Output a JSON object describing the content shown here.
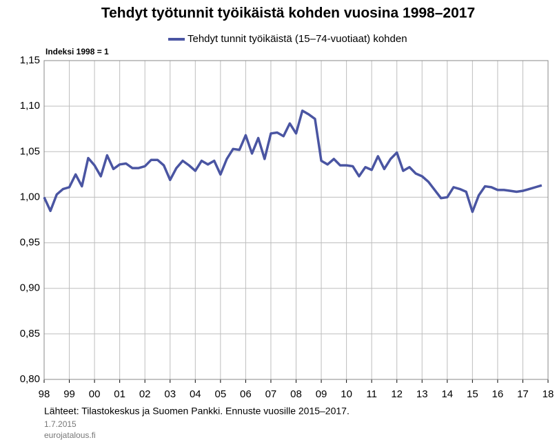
{
  "chart_data": {
    "type": "line",
    "title": "Tehdyt työtunnit työikäistä kohden vuosina 1998–2017",
    "y_axis_label": "Indeksi 1998 = 1",
    "source": "Lähteet: Tilastokeskus ja Suomen Pankki. Ennuste vuosille 2015–2017.",
    "date": "1.7.2015",
    "site": "eurojatalous.fi",
    "grid": true,
    "xlim": [
      1998,
      2018
    ],
    "ylim": [
      0.8,
      1.15
    ],
    "yticks": [
      {
        "value": 0.8,
        "label": "0,80"
      },
      {
        "value": 0.85,
        "label": "0,85"
      },
      {
        "value": 0.9,
        "label": "0,90"
      },
      {
        "value": 0.95,
        "label": "0,95"
      },
      {
        "value": 1.0,
        "label": "1,00"
      },
      {
        "value": 1.05,
        "label": "1,05"
      },
      {
        "value": 1.1,
        "label": "1,10"
      },
      {
        "value": 1.15,
        "label": "1,15"
      }
    ],
    "xticks": [
      {
        "value": 1998,
        "label": "98"
      },
      {
        "value": 1999,
        "label": "99"
      },
      {
        "value": 2000,
        "label": "00"
      },
      {
        "value": 2001,
        "label": "01"
      },
      {
        "value": 2002,
        "label": "02"
      },
      {
        "value": 2003,
        "label": "03"
      },
      {
        "value": 2004,
        "label": "04"
      },
      {
        "value": 2005,
        "label": "05"
      },
      {
        "value": 2006,
        "label": "06"
      },
      {
        "value": 2007,
        "label": "07"
      },
      {
        "value": 2008,
        "label": "08"
      },
      {
        "value": 2009,
        "label": "09"
      },
      {
        "value": 2010,
        "label": "10"
      },
      {
        "value": 2011,
        "label": "11"
      },
      {
        "value": 2012,
        "label": "12"
      },
      {
        "value": 2013,
        "label": "13"
      },
      {
        "value": 2014,
        "label": "14"
      },
      {
        "value": 2015,
        "label": "15"
      },
      {
        "value": 2016,
        "label": "16"
      },
      {
        "value": 2017,
        "label": "17"
      },
      {
        "value": 2018,
        "label": "18"
      }
    ],
    "x": [
      1998,
      1998.25,
      1998.5,
      1998.75,
      1999,
      1999.25,
      1999.5,
      1999.75,
      2000,
      2000.25,
      2000.5,
      2000.75,
      2001,
      2001.25,
      2001.5,
      2001.75,
      2002,
      2002.25,
      2002.5,
      2002.75,
      2003,
      2003.25,
      2003.5,
      2003.75,
      2004,
      2004.25,
      2004.5,
      2004.75,
      2005,
      2005.25,
      2005.5,
      2005.75,
      2006,
      2006.25,
      2006.5,
      2006.75,
      2007,
      2007.25,
      2007.5,
      2007.75,
      2008,
      2008.25,
      2008.5,
      2008.75,
      2009,
      2009.25,
      2009.5,
      2009.75,
      2010,
      2010.25,
      2010.5,
      2010.75,
      2011,
      2011.25,
      2011.5,
      2011.75,
      2012,
      2012.25,
      2012.5,
      2012.75,
      2013,
      2013.25,
      2013.5,
      2013.75,
      2014,
      2014.25,
      2014.5,
      2014.75,
      2015,
      2015.25,
      2015.5,
      2015.75,
      2016,
      2016.25,
      2016.5,
      2016.75,
      2017,
      2017.25,
      2017.5,
      2017.75
    ],
    "series": [
      {
        "name": "Tehdyt tunnit työikäistä (15–74-vuotiaat) kohden",
        "color": "#4a55a2",
        "values": [
          1.0,
          0.985,
          1.003,
          1.009,
          1.011,
          1.025,
          1.012,
          1.043,
          1.035,
          1.023,
          1.046,
          1.031,
          1.036,
          1.037,
          1.032,
          1.032,
          1.034,
          1.041,
          1.041,
          1.035,
          1.019,
          1.032,
          1.04,
          1.035,
          1.029,
          1.04,
          1.036,
          1.04,
          1.025,
          1.042,
          1.053,
          1.052,
          1.068,
          1.048,
          1.065,
          1.042,
          1.07,
          1.071,
          1.067,
          1.081,
          1.07,
          1.095,
          1.091,
          1.086,
          1.04,
          1.036,
          1.042,
          1.035,
          1.035,
          1.034,
          1.023,
          1.033,
          1.03,
          1.045,
          1.031,
          1.042,
          1.049,
          1.029,
          1.033,
          1.026,
          1.023,
          1.017,
          1.008,
          0.999,
          1.0,
          1.011,
          1.009,
          1.006,
          0.984,
          1.002,
          1.012,
          1.011,
          1.008,
          1.008,
          1.007,
          1.006,
          1.007,
          1.009,
          1.011,
          1.013
        ]
      }
    ]
  }
}
